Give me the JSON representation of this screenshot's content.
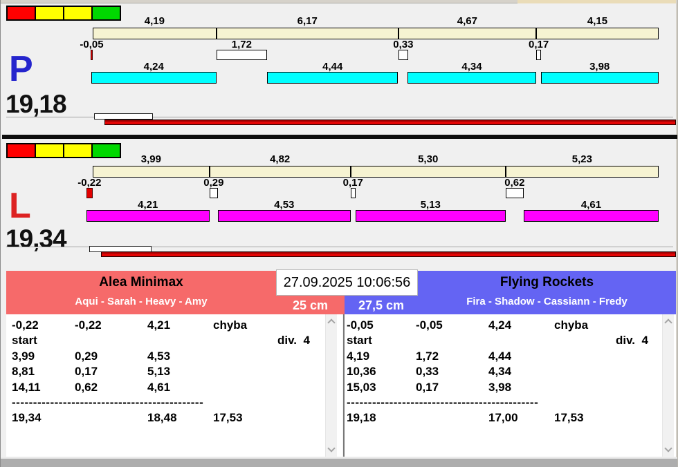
{
  "meta": {
    "timestamp": "27.09.2025 10:06:56"
  },
  "colors": {
    "swatches": [
      "#ff0000",
      "#ffff00",
      "#ffff00",
      "#00d800"
    ],
    "cream_bar": "#f6f3d2",
    "gauge_red": "#e30404",
    "p_letter": "#2525cd",
    "l_letter": "#dd2222"
  },
  "panels": [
    {
      "id": "P",
      "letter": "P",
      "letter_color": "#2525cd",
      "total": "19,18",
      "total_value": 19.18,
      "bar_color": "#00ffff",
      "segments": [
        4.19,
        6.17,
        4.67,
        4.15
      ],
      "segment_labels": [
        "4,19",
        "6,17",
        "4,67",
        "4,15"
      ],
      "diffs": [
        -0.05,
        1.72,
        0.33,
        0.17
      ],
      "diff_labels": [
        "-0,05",
        "1,72",
        "0,33",
        "0,17"
      ],
      "throws": [
        4.24,
        4.44,
        4.34,
        3.98
      ],
      "throw_labels": [
        "4,24",
        "4,44",
        "4,34",
        "3,98"
      ]
    },
    {
      "id": "L",
      "letter": "L",
      "letter_color": "#dd2222",
      "total": "19,34",
      "total_value": 19.34,
      "bar_color": "#ff00ff",
      "segments": [
        3.99,
        4.82,
        5.3,
        5.23
      ],
      "segment_labels": [
        "3,99",
        "4,82",
        "5,30",
        "5,23"
      ],
      "diffs": [
        -0.22,
        0.29,
        0.17,
        0.62
      ],
      "diff_labels": [
        "-0,22",
        "0,29",
        "0,17",
        "0,62"
      ],
      "throws": [
        4.21,
        4.53,
        5.13,
        4.61
      ],
      "throw_labels": [
        "4,21",
        "4,53",
        "5,13",
        "4,61"
      ]
    }
  ],
  "teams": [
    {
      "name": "Alea Minimax",
      "players": "Aqui - Sarah - Heavy - Amy",
      "distance": "25 cm",
      "header_color": "#f66a6a",
      "log": {
        "dashes": "---------------------------------------------",
        "lines": [
          {
            "cells": [
              "-0,22",
              "-0,22",
              "4,21",
              "chyba"
            ]
          },
          {
            "cells": [
              "start"
            ],
            "right": "div.  4"
          },
          {
            "cells": [
              "3,99",
              "0,29",
              "4,53"
            ]
          },
          {
            "cells": [
              "8,81",
              "0,17",
              "5,13"
            ]
          },
          {
            "cells": [
              "14,11",
              "0,62",
              "4,61"
            ]
          },
          {
            "dashes": true
          },
          {
            "cells": [
              "19,34",
              "",
              "18,48",
              "17,53"
            ]
          }
        ]
      }
    },
    {
      "name": "Flying Rockets",
      "players": "Fira - Shadow - Cassiann - Fredy",
      "distance": "27,5 cm",
      "header_color": "#6464f3",
      "log": {
        "dashes": "---------------------------------------------",
        "lines": [
          {
            "cells": [
              "-0,05",
              "-0,05",
              "4,24",
              "chyba"
            ]
          },
          {
            "cells": [
              "start"
            ],
            "right": "div.  4"
          },
          {
            "cells": [
              "4,19",
              "1,72",
              "4,44"
            ]
          },
          {
            "cells": [
              "10,36",
              "0,33",
              "4,34"
            ]
          },
          {
            "cells": [
              "15,03",
              "0,17",
              "3,98"
            ]
          },
          {
            "dashes": true
          },
          {
            "cells": [
              "19,18",
              "",
              "17,00",
              "17,53"
            ]
          }
        ]
      }
    }
  ]
}
